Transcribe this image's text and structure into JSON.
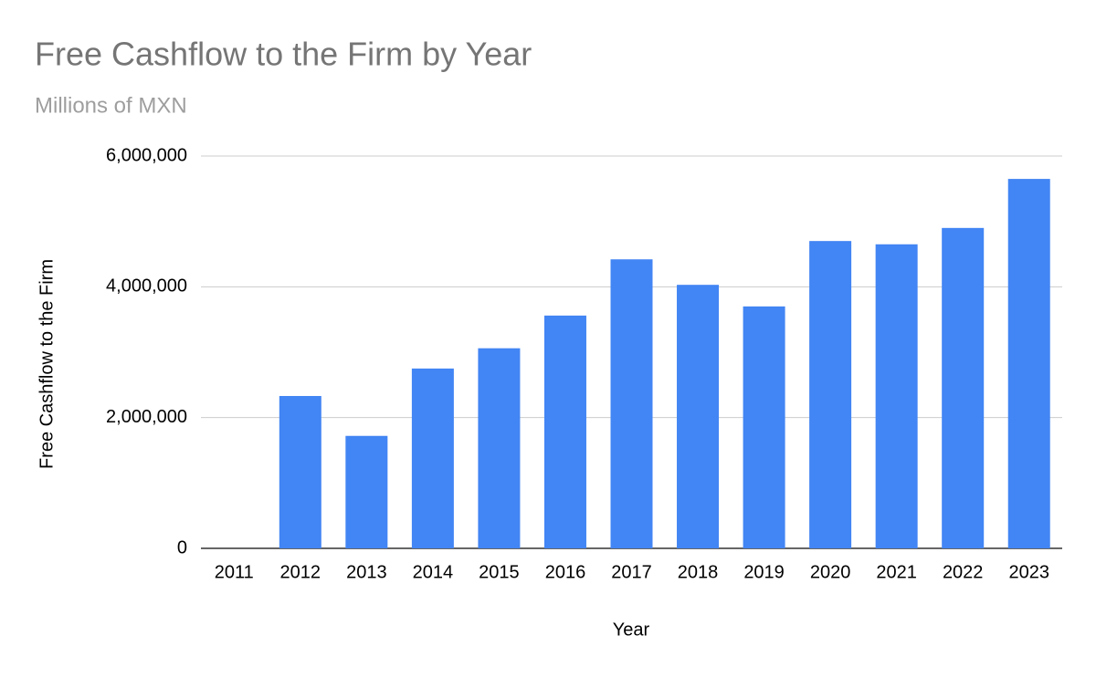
{
  "chart_data": {
    "type": "bar",
    "title": "Free Cashflow to the Firm by Year",
    "subtitle": "Millions of MXN",
    "x_label": "Year",
    "y_label": "Free Cashflow to the Firm",
    "categories": [
      "2011",
      "2012",
      "2013",
      "2014",
      "2015",
      "2016",
      "2017",
      "2018",
      "2019",
      "2020",
      "2021",
      "2022",
      "2023"
    ],
    "values": [
      null,
      2330000,
      1720000,
      2750000,
      3060000,
      3560000,
      4420000,
      4030000,
      3700000,
      4700000,
      4650000,
      4900000,
      5650000
    ],
    "color": "#4285f4",
    "ylim": [
      0,
      6000000
    ],
    "yticks": [
      0,
      {
        "value": 2000000,
        "label": "2,000,000"
      },
      {
        "value": 4000000,
        "label": "4,000,000"
      },
      {
        "value": 6000000,
        "label": "6,000,000"
      }
    ],
    "grid": true
  }
}
